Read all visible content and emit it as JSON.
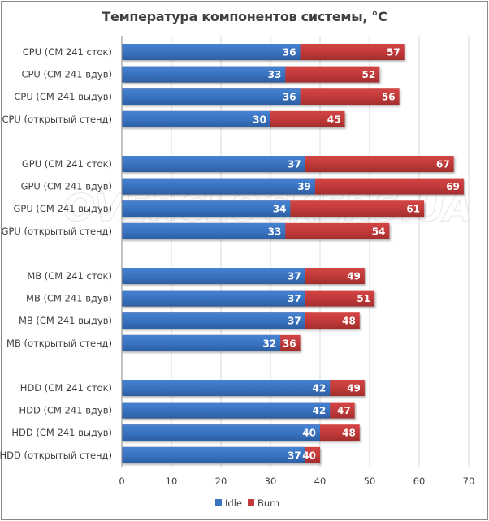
{
  "chart_data": {
    "type": "bar",
    "orientation": "horizontal",
    "overlap": true,
    "title": "Температура компонентов системы, °C",
    "xlabel": "",
    "ylabel": "",
    "xlim": [
      0,
      70
    ],
    "xticks": [
      0,
      10,
      20,
      30,
      40,
      50,
      60,
      70
    ],
    "grid": true,
    "legend_position": "bottom",
    "watermark": "OVERCLOCKERS.UA",
    "groups": [
      {
        "name": "CPU",
        "categories": [
          "CPU (CM 241 сток)",
          "CPU (CM 241 вдув)",
          "CPU (CM 241 выдув)",
          "CPU (открытый стенд)"
        ]
      },
      {
        "name": "GPU",
        "categories": [
          "GPU  (CM 241 сток)",
          "GPU  (CM 241 вдув)",
          "GPU  (CM 241 выдув)",
          "GPU  (открытый стенд)"
        ]
      },
      {
        "name": "MB",
        "categories": [
          "MB (CM 241 сток)",
          "MB (CM 241 вдув)",
          "MB (CM 241 выдув)",
          "MB (открытый стенд)"
        ]
      },
      {
        "name": "HDD",
        "categories": [
          "HDD (CM 241 сток)",
          "HDD (CM 241 вдув)",
          "HDD (CM 241 выдув)",
          "HDD (открытый стенд)"
        ]
      }
    ],
    "series": [
      {
        "name": "Idle",
        "color": "#3a73c0",
        "values": [
          [
            36,
            33,
            36,
            30
          ],
          [
            37,
            39,
            34,
            33
          ],
          [
            37,
            37,
            37,
            32
          ],
          [
            42,
            42,
            40,
            37
          ]
        ]
      },
      {
        "name": "Burn",
        "color": "#c23a3a",
        "values": [
          [
            57,
            52,
            56,
            45
          ],
          [
            67,
            69,
            61,
            54
          ],
          [
            49,
            51,
            48,
            36
          ],
          [
            49,
            47,
            48,
            40
          ]
        ]
      }
    ]
  }
}
